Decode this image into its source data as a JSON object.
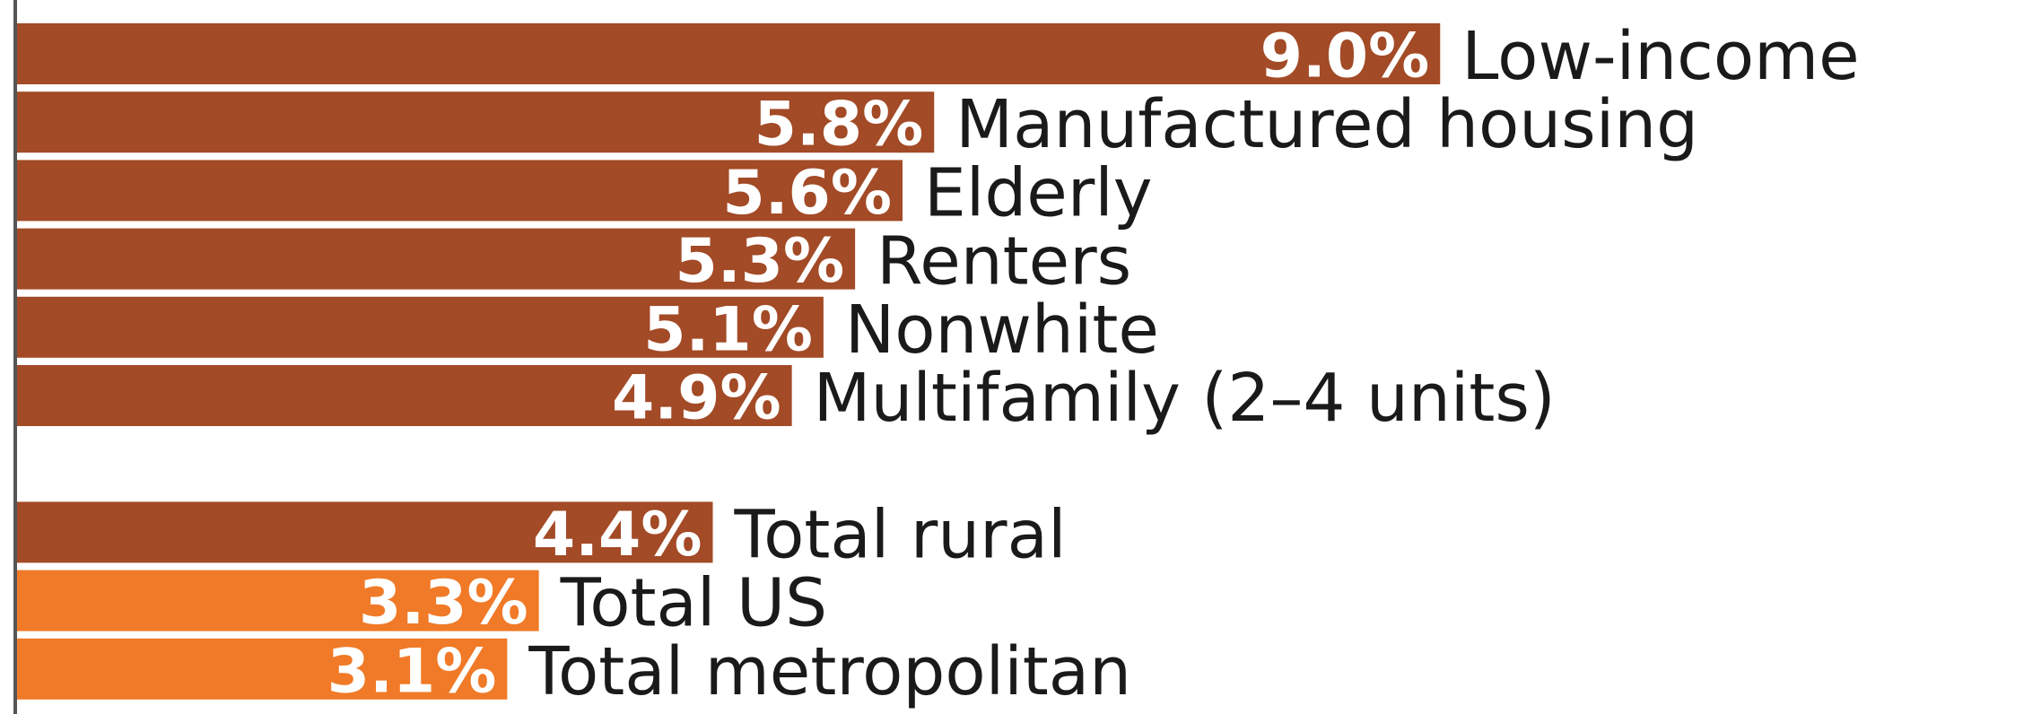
{
  "chart_data": {
    "type": "bar",
    "orientation": "horizontal",
    "categories": [
      "Low-income",
      "Manufactured housing",
      "Elderly",
      "Renters",
      "Nonwhite",
      "Multifamily (2–4 units)",
      null,
      "Total rural",
      "Total US",
      "Total metropolitan"
    ],
    "values": [
      9.0,
      5.8,
      5.6,
      5.3,
      5.1,
      4.9,
      null,
      4.4,
      3.3,
      3.1
    ],
    "value_labels": [
      "9.0%",
      "5.8%",
      "5.6%",
      "5.3%",
      "5.1%",
      "4.9%",
      null,
      "4.4%",
      "3.3%",
      "3.1%"
    ],
    "colors": [
      "#a34a26",
      "#a34a26",
      "#a34a26",
      "#a34a26",
      "#a34a26",
      "#a34a26",
      null,
      "#a34a26",
      "#f07a27",
      "#f07a27"
    ],
    "xlim": [
      0,
      12.8
    ]
  }
}
